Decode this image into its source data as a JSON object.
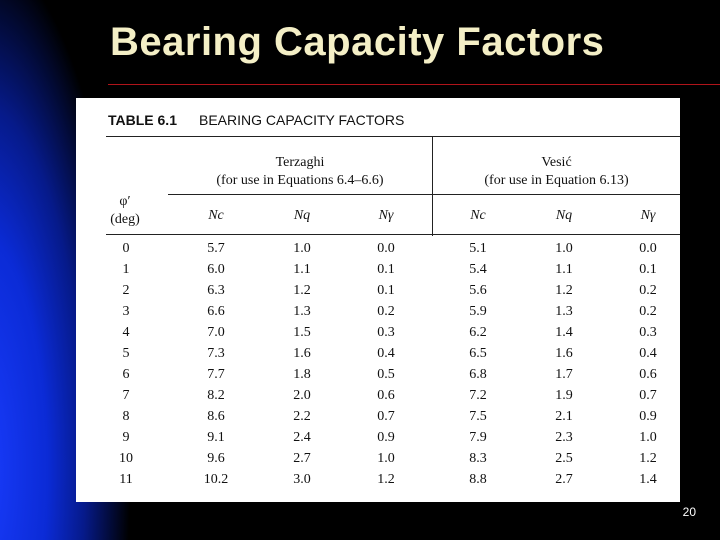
{
  "slide": {
    "title": "Bearing Capacity Factors",
    "page_number": "20"
  },
  "table": {
    "caption_num": "TABLE 6.1",
    "caption_text": "BEARING CAPACITY FACTORS",
    "row_header_line1": "φ′",
    "row_header_line2": "(deg)",
    "groups": [
      {
        "name": "Terzaghi",
        "note": "(for use in Equations 6.4–6.6)"
      },
      {
        "name": "Vesić",
        "note": "(for use in Equation 6.13)"
      }
    ],
    "columns": [
      "Nc",
      "Nq",
      "Nγ",
      "Nc",
      "Nq",
      "Nγ"
    ],
    "rows": [
      [
        "0",
        "5.7",
        "1.0",
        "0.0",
        "5.1",
        "1.0",
        "0.0"
      ],
      [
        "1",
        "6.0",
        "1.1",
        "0.1",
        "5.4",
        "1.1",
        "0.1"
      ],
      [
        "2",
        "6.3",
        "1.2",
        "0.1",
        "5.6",
        "1.2",
        "0.2"
      ],
      [
        "3",
        "6.6",
        "1.3",
        "0.2",
        "5.9",
        "1.3",
        "0.2"
      ],
      [
        "4",
        "7.0",
        "1.5",
        "0.3",
        "6.2",
        "1.4",
        "0.3"
      ],
      [
        "5",
        "7.3",
        "1.6",
        "0.4",
        "6.5",
        "1.6",
        "0.4"
      ],
      [
        "6",
        "7.7",
        "1.8",
        "0.5",
        "6.8",
        "1.7",
        "0.6"
      ],
      [
        "7",
        "8.2",
        "2.0",
        "0.6",
        "7.2",
        "1.9",
        "0.7"
      ],
      [
        "8",
        "8.6",
        "2.2",
        "0.7",
        "7.5",
        "2.1",
        "0.9"
      ],
      [
        "9",
        "9.1",
        "2.4",
        "0.9",
        "7.9",
        "2.3",
        "1.0"
      ],
      [
        "10",
        "9.6",
        "2.7",
        "1.0",
        "8.3",
        "2.5",
        "1.2"
      ],
      [
        "11",
        "10.2",
        "3.0",
        "1.2",
        "8.8",
        "2.7",
        "1.4"
      ]
    ]
  }
}
